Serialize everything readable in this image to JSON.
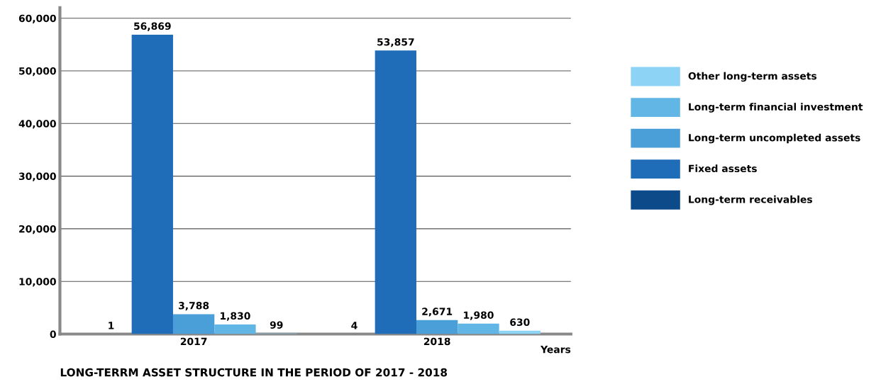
{
  "chart_data": {
    "type": "bar",
    "title": "LONG-TERRM ASSET STRUCTURE IN THE PERIOD OF 2017 - 2018",
    "xlabel": "Years",
    "categories": [
      "2017",
      "2018"
    ],
    "series": [
      {
        "name": "Long-term receivables",
        "color": "#0d4a8a",
        "values": [
          1,
          4
        ],
        "value_labels": [
          "1",
          "4"
        ]
      },
      {
        "name": "Fixed assets",
        "color": "#1f6db8",
        "values": [
          56869,
          53857
        ],
        "value_labels": [
          "56,869",
          "53,857"
        ]
      },
      {
        "name": "Long-term uncompleted assets",
        "color": "#4a9fd8",
        "values": [
          3788,
          2671
        ],
        "value_labels": [
          "3,788",
          "2,671"
        ]
      },
      {
        "name": "Long-term financial investment",
        "color": "#62b6e6",
        "values": [
          1830,
          1980
        ],
        "value_labels": [
          "1,830",
          "1,980"
        ]
      },
      {
        "name": "Other long-term assets",
        "color": "#8dd3f5",
        "values": [
          99,
          630
        ],
        "value_labels": [
          "99",
          "630"
        ]
      }
    ],
    "ylim": [
      0,
      62000
    ],
    "yticks": [
      {
        "value": 0,
        "label": "0"
      },
      {
        "value": 10000,
        "label": "10,000"
      },
      {
        "value": 20000,
        "label": "20,000"
      },
      {
        "value": 30000,
        "label": "30,000"
      },
      {
        "value": 40000,
        "label": "40,000"
      },
      {
        "value": 50000,
        "label": "50,000"
      },
      {
        "value": 60000,
        "label": "60,000"
      }
    ],
    "grid": "y",
    "legend": "right"
  }
}
